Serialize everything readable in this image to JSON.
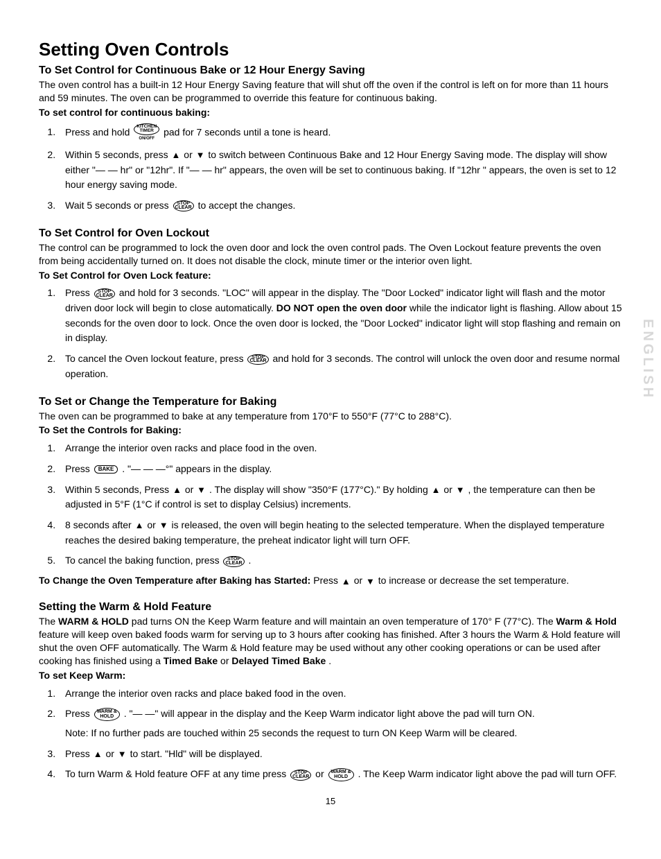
{
  "doc": {
    "title": "Setting Oven Controls",
    "page_number": "15",
    "side_tab": "ENGLISH",
    "sections": [
      {
        "id": "s1",
        "heading": "To Set Control for Continuous Bake or 12 Hour Energy Saving",
        "intro": "The oven control has a built-in 12 Hour Energy Saving feature that will shut off the oven if the control is left on for more than 11 hours and 59 minutes. The oven can be programmed to override this feature for continuous baking.",
        "bold_lead": "To set control for continuous baking:",
        "steps": [
          {
            "pre": "Press and hold ",
            "icon": "kitchen-timer",
            "post": " pad for 7 seconds until a tone is heard."
          },
          {
            "pre": "Within 5 seconds, press ",
            "icon": "up",
            "mid1": " or ",
            "icon2": "down",
            "post": " to switch between Continuous Bake and 12 Hour  Energy Saving mode. The display will show either \"— — hr\" or \"12hr\". If \"— — hr\" appears, the oven will be set to continuous baking. If \"12hr \" appears, the oven is set to 12 hour energy saving mode."
          },
          {
            "pre": "Wait 5 seconds or press ",
            "icon": "stop-clear",
            "post": " to accept the changes."
          }
        ]
      },
      {
        "id": "s2",
        "heading": "To Set Control for Oven Lockout",
        "intro": "The control can be programmed to lock the oven door and lock the oven control pads. The Oven Lockout feature prevents the oven from being accidentally turned on. It does not disable the clock, minute timer or the interior oven light.",
        "bold_lead": "To Set Control for Oven Lock feature:",
        "steps": [
          {
            "pre": "Press ",
            "icon": "stop-clear",
            "post": " and hold for 3 seconds. \"LOC\" will appear in the display. The \"Door Locked\" indicator light will flash and the motor driven door lock will begin to close automatically. ",
            "bold_mid": "DO NOT open the oven door",
            "tail": " while the indicator light is flashing. Allow about 15 seconds for the oven door to lock. Once the oven door is locked, the \"Door Locked\" indicator light will stop flashing and remain on in display."
          },
          {
            "pre": "To cancel the Oven lockout feature, press ",
            "icon": "stop-clear",
            "post": " and hold for 3 seconds. The control will unlock the oven door and resume normal operation."
          }
        ]
      },
      {
        "id": "s3",
        "heading": "To Set or Change the Temperature for Baking",
        "intro": "The oven can be programmed to bake at any temperature from 170°F to 550°F (77°C to 288°C).",
        "bold_lead": "To Set the Controls for Baking:",
        "steps": [
          {
            "pre": "Arrange the interior oven racks and place food in the oven."
          },
          {
            "pre": "Press ",
            "icon": "bake",
            "post": ". \"— — —°\" appears in the display."
          },
          {
            "pre": "Within 5 seconds, Press ",
            "icon": "up",
            "mid1": " or ",
            "icon2": "down",
            "post2": ". The display will show \"350°F (177°C).\" By holding ",
            "icon3": "up",
            "mid3": " or ",
            "icon4": "down",
            "tail": ", the temperature can then be adjusted in 5°F (1°C if control is set to display Celsius) increments."
          },
          {
            "pre": "8 seconds after ",
            "icon": "up",
            "mid1": " or ",
            "icon2": "down",
            "post": " is released, the oven will begin heating to the selected temperature. When the displayed temperature reaches the desired baking temperature, the preheat indicator light will turn OFF."
          },
          {
            "pre": "To cancel the baking function, press ",
            "icon": "stop-clear",
            "post": "."
          }
        ],
        "after_bold": "To Change the Oven Temperature after Baking has Started:",
        "after_text_pre": " Press ",
        "after_text_mid": " or ",
        "after_text_post": " to increase or decrease the set temperature."
      },
      {
        "id": "s4",
        "heading": "Setting the Warm & Hold Feature",
        "intro_pre": "The ",
        "intro_b1": "WARM & HOLD",
        "intro_mid1": " pad turns ON the Keep Warm feature and will maintain an oven temperature of 170° F (77°C). The ",
        "intro_b2": "Warm & Hold",
        "intro_mid2": " feature will keep oven baked foods warm for serving up to 3 hours after cooking has finished. After 3 hours the Warm & Hold feature will shut the oven OFF automatically. The Warm & Hold feature may be used without any other cooking operations or can be used after cooking has finished using a ",
        "intro_b3": "Timed Bake",
        "intro_mid3": " or ",
        "intro_b4": "Delayed Timed  Bake",
        "intro_end": ".",
        "bold_lead": "To set Keep Warm:",
        "steps": [
          {
            "pre": "Arrange the interior oven racks and place baked food in the oven."
          },
          {
            "pre": "Press ",
            "icon": "warm-hold",
            "post": ". \"— —\" will appear in the display and the Keep Warm indicator light above the pad will turn ON.",
            "note": "Note: If no further pads are touched within 25 seconds the request to turn ON Keep Warm will be cleared."
          },
          {
            "pre": "Press ",
            "icon": "up",
            "mid1": " or ",
            "icon2": "down",
            "post": " to start. \"Hld\" will be displayed."
          },
          {
            "pre": "To turn Warm & Hold feature OFF at any time press ",
            "icon": "stop-clear",
            "mid1": " or ",
            "icon2": "warm-hold",
            "post": ". The Keep Warm indicator light above the pad will turn OFF."
          }
        ]
      }
    ],
    "icons": {
      "up": "▲",
      "down": "▼",
      "bake": "BAKE",
      "warm-hold": "WARM &\nHOLD",
      "stop-clear": "STOP\nCLEAR",
      "kitchen-timer-l1": "KITCHEN",
      "kitchen-timer-l2": "TIMER",
      "kitchen-timer-sub": "ON/OFF"
    }
  }
}
